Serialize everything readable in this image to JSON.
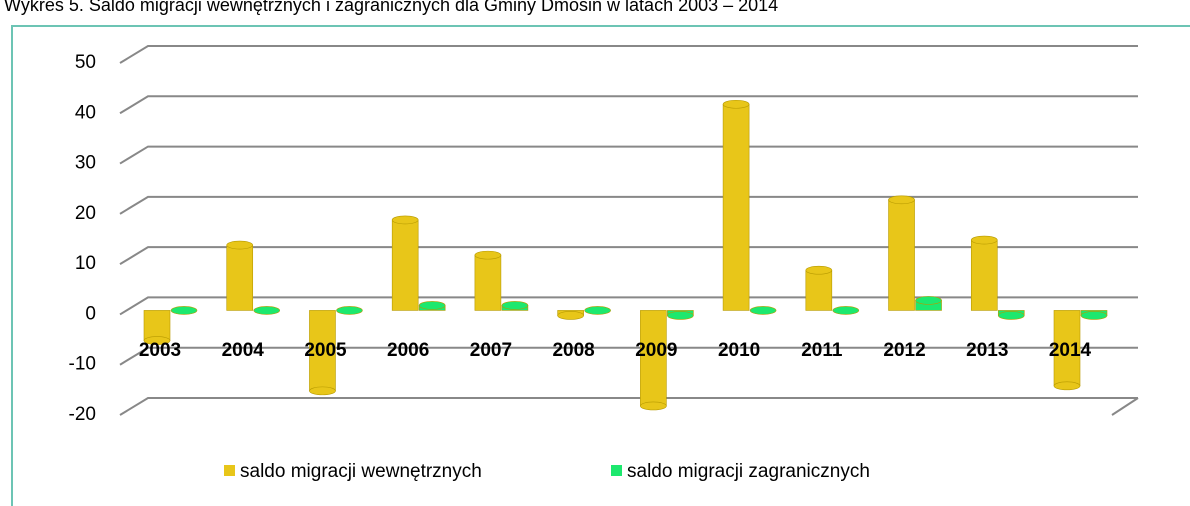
{
  "chart_data": {
    "type": "bar",
    "title": "Wykres 5. Saldo migracji wewnętrznych i zagranicznych dla Gminy Dmosin w latach 2003 – 2014",
    "categories": [
      "2003",
      "2004",
      "2005",
      "2006",
      "2007",
      "2008",
      "2009",
      "2010",
      "2011",
      "2012",
      "2013",
      "2014"
    ],
    "series": [
      {
        "name": "saldo migracji wewnętrznych",
        "color": "#e8c619",
        "values": [
          -6,
          13,
          -16,
          18,
          11,
          -1,
          -19,
          41,
          8,
          22,
          14,
          -15
        ]
      },
      {
        "name": "saldo migracji zagranicznych",
        "color": "#1de86e",
        "values": [
          0,
          0,
          0,
          1,
          1,
          0,
          -1,
          0,
          0,
          2,
          -1,
          -1
        ]
      }
    ],
    "ylim": [
      -20,
      50
    ],
    "yticks": [
      -20,
      -10,
      0,
      10,
      20,
      30,
      40,
      50
    ],
    "grid": true
  }
}
